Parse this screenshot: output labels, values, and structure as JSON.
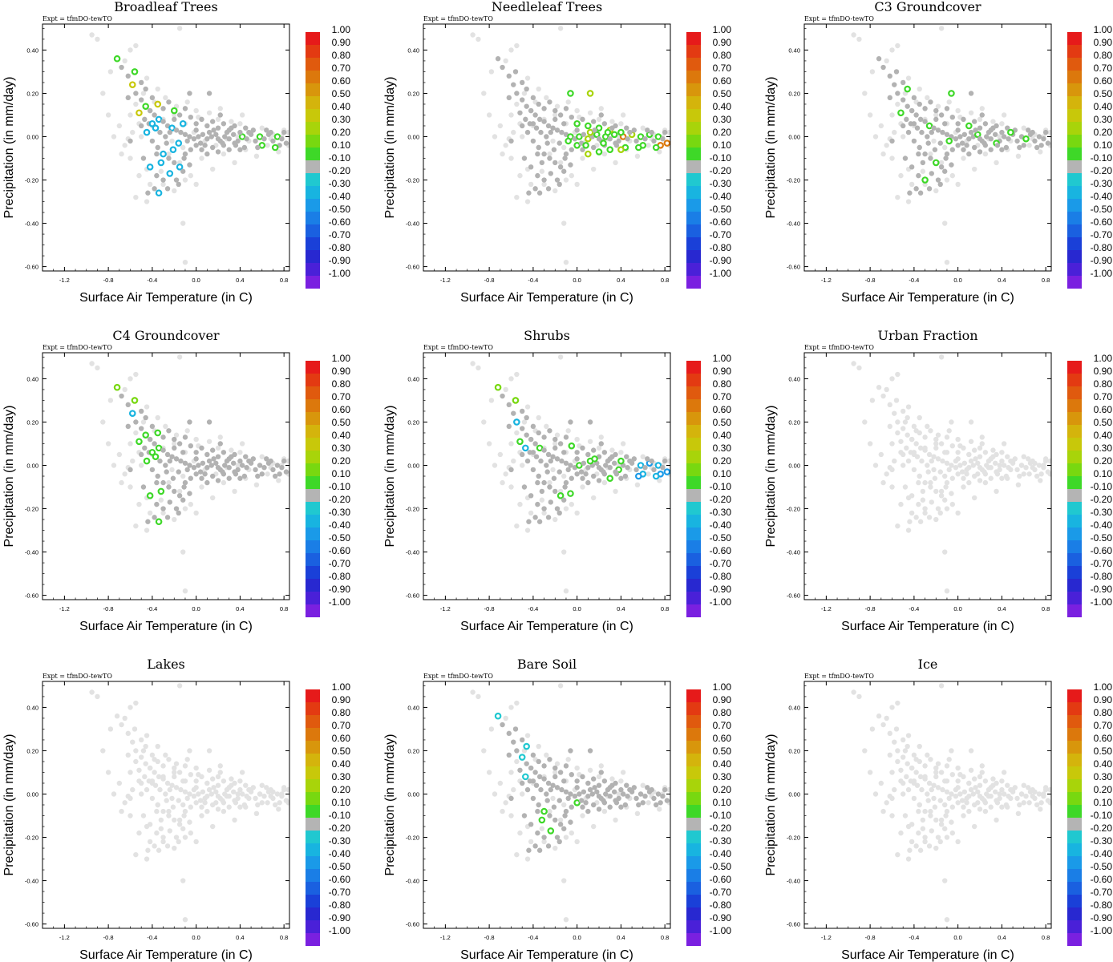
{
  "figure": {
    "experiment": "Expt = tfmDO-tewTO",
    "xlabel": "Surface Air Temperature (in C)",
    "ylabel": "Precipitation (in mm/day)"
  },
  "chart_data": [
    {
      "type": "scatter",
      "panel": "Broadleaf Trees",
      "title": "Broadleaf Trees",
      "highlight": "broadleaf"
    },
    {
      "type": "scatter",
      "panel": "Needleleaf Trees",
      "title": "Needleleaf Trees",
      "highlight": "needleleaf"
    },
    {
      "type": "scatter",
      "panel": "C3 Groundcover",
      "title": "C3 Groundcover",
      "highlight": "c3"
    },
    {
      "type": "scatter",
      "panel": "C4 Groundcover",
      "title": "C4 Groundcover",
      "highlight": "c4"
    },
    {
      "type": "scatter",
      "panel": "Shrubs",
      "title": "Shrubs",
      "highlight": "shrubs"
    },
    {
      "type": "scatter",
      "panel": "Urban Fraction",
      "title": "Urban Fraction",
      "highlight": "none"
    },
    {
      "type": "scatter",
      "panel": "Lakes",
      "title": "Lakes",
      "highlight": "none"
    },
    {
      "type": "scatter",
      "panel": "Bare Soil",
      "title": "Bare Soil",
      "highlight": "baresoil"
    },
    {
      "type": "scatter",
      "panel": "Ice",
      "title": "Ice",
      "highlight": "none"
    }
  ],
  "axes": {
    "xlim": [
      -1.4,
      0.85
    ],
    "ylim": [
      -0.62,
      0.52
    ],
    "xticks": [
      -1.2,
      -0.8,
      -0.4,
      0.0,
      0.4,
      0.8
    ],
    "xtick_labels": [
      "-1.2",
      "-0.8",
      "-0.4",
      "0.0",
      "0.4",
      "0.8"
    ],
    "yticks": [
      0.4,
      0.2,
      0.0,
      -0.2,
      -0.4,
      -0.6
    ],
    "ytick_labels": [
      "0.40",
      "0.20",
      "0.00",
      "-0.20",
      "-0.40",
      "-0.60"
    ]
  },
  "colorbar": {
    "labels": [
      "1.00",
      "0.90",
      "0.80",
      "0.70",
      "0.60",
      "0.50",
      "0.40",
      "0.30",
      "0.20",
      "0.10",
      "-0.10",
      "-0.20",
      "-0.30",
      "-0.40",
      "-0.50",
      "-0.60",
      "-0.70",
      "-0.80",
      "-0.90",
      "-1.00"
    ],
    "colors": [
      "#e61a1a",
      "#e33a12",
      "#e05a0e",
      "#dc780c",
      "#d8960c",
      "#d4b40c",
      "#c8c80a",
      "#a8d40a",
      "#78d810",
      "#3ed828",
      "#b4b4b4",
      "#20c8d0",
      "#18b4e0",
      "#1a9ae8",
      "#1a7ee6",
      "#1a60e0",
      "#1a40d8",
      "#2828d0",
      "#4a20d8",
      "#7a20e0"
    ]
  },
  "points": {
    "background": [
      [
        -0.95,
        0.47
      ],
      [
        -0.9,
        0.45
      ],
      [
        -0.45,
        0.27
      ],
      [
        -0.35,
        0.22
      ],
      [
        -0.42,
        0.12
      ],
      [
        -0.52,
        0.06
      ],
      [
        -0.58,
        0.02
      ],
      [
        -0.62,
        -0.01
      ],
      [
        -0.65,
        -0.04
      ],
      [
        -0.5,
        0.0
      ],
      [
        -0.4,
        0.05
      ],
      [
        -0.3,
        0.08
      ],
      [
        -0.2,
        0.1
      ],
      [
        -0.1,
        0.06
      ],
      [
        0.0,
        0.12
      ],
      [
        0.1,
        0.05
      ],
      [
        0.2,
        0.08
      ],
      [
        0.3,
        0.03
      ],
      [
        0.4,
        0.06
      ],
      [
        0.5,
        0.02
      ],
      [
        0.6,
        0.04
      ],
      [
        0.7,
        0.01
      ],
      [
        0.8,
        0.03
      ],
      [
        -0.35,
        -0.05
      ],
      [
        -0.25,
        -0.08
      ],
      [
        -0.15,
        -0.12
      ],
      [
        -0.05,
        -0.18
      ],
      [
        0.05,
        -0.1
      ],
      [
        0.15,
        -0.15
      ],
      [
        0.25,
        -0.08
      ],
      [
        0.35,
        -0.12
      ],
      [
        0.45,
        -0.06
      ],
      [
        0.55,
        -0.09
      ],
      [
        0.65,
        -0.04
      ],
      [
        0.75,
        -0.07
      ],
      [
        -0.45,
        -0.15
      ],
      [
        -0.3,
        -0.22
      ],
      [
        -0.2,
        -0.25
      ],
      [
        -0.1,
        -0.2
      ],
      [
        0.0,
        -0.22
      ],
      [
        -0.55,
        -0.28
      ],
      [
        -0.45,
        -0.3
      ],
      [
        -0.12,
        -0.4
      ],
      [
        -0.1,
        -0.58
      ],
      [
        -0.55,
        0.15
      ],
      [
        -0.48,
        0.2
      ],
      [
        -0.38,
        0.16
      ],
      [
        -0.28,
        0.18
      ],
      [
        -0.18,
        0.14
      ],
      [
        -0.08,
        0.16
      ],
      [
        0.02,
        0.09
      ],
      [
        0.12,
        0.11
      ],
      [
        0.22,
        0.13
      ],
      [
        0.32,
        0.07
      ],
      [
        0.42,
        0.1
      ],
      [
        -0.6,
        0.1
      ],
      [
        -0.7,
        0.05
      ],
      [
        -0.75,
        0.0
      ],
      [
        -0.68,
        -0.08
      ],
      [
        -0.6,
        -0.1
      ],
      [
        -0.52,
        -0.18
      ],
      [
        -0.42,
        -0.22
      ],
      [
        -0.32,
        -0.16
      ],
      [
        -0.22,
        -0.02
      ],
      [
        -0.12,
        -0.05
      ],
      [
        -0.02,
        0.02
      ],
      [
        0.08,
        -0.02
      ],
      [
        0.18,
        -0.04
      ],
      [
        0.28,
        -0.01
      ],
      [
        0.38,
        0.0
      ],
      [
        0.48,
        -0.02
      ],
      [
        0.58,
        0.0
      ],
      [
        0.68,
        -0.01
      ],
      [
        0.78,
        0.0
      ],
      [
        0.84,
        0.02
      ],
      [
        0.84,
        -0.04
      ],
      [
        -0.8,
        0.1
      ],
      [
        -0.85,
        0.2
      ],
      [
        -0.78,
        0.3
      ],
      [
        -0.65,
        0.35
      ],
      [
        -0.6,
        0.4
      ],
      [
        -0.55,
        0.42
      ],
      [
        -0.15,
        0.5
      ]
    ],
    "cloud": [
      [
        -0.72,
        0.36
      ],
      [
        -0.68,
        0.32
      ],
      [
        -0.62,
        0.28
      ],
      [
        -0.58,
        0.24
      ],
      [
        -0.55,
        0.2
      ],
      [
        -0.5,
        0.17
      ],
      [
        -0.46,
        0.14
      ],
      [
        -0.42,
        0.12
      ],
      [
        -0.38,
        0.1
      ],
      [
        -0.34,
        0.08
      ],
      [
        -0.3,
        0.07
      ],
      [
        -0.26,
        0.05
      ],
      [
        -0.22,
        0.04
      ],
      [
        -0.18,
        0.03
      ],
      [
        -0.14,
        0.02
      ],
      [
        -0.1,
        0.01
      ],
      [
        -0.06,
        0.0
      ],
      [
        -0.02,
        -0.01
      ],
      [
        0.02,
        0.0
      ],
      [
        0.06,
        0.01
      ],
      [
        0.1,
        -0.01
      ],
      [
        0.14,
        0.0
      ],
      [
        0.18,
        0.01
      ],
      [
        0.22,
        -0.02
      ],
      [
        0.26,
        0.0
      ],
      [
        0.3,
        -0.01
      ],
      [
        0.34,
        0.01
      ],
      [
        0.38,
        -0.02
      ],
      [
        0.42,
        0.0
      ],
      [
        0.46,
        -0.01
      ],
      [
        0.5,
        0.01
      ],
      [
        0.54,
        -0.02
      ],
      [
        0.58,
        0.0
      ],
      [
        0.62,
        -0.01
      ],
      [
        0.66,
        0.01
      ],
      [
        0.7,
        -0.02
      ],
      [
        0.74,
        0.0
      ],
      [
        0.78,
        -0.01
      ],
      [
        -0.5,
        0.05
      ],
      [
        -0.45,
        0.02
      ],
      [
        -0.4,
        -0.02
      ],
      [
        -0.35,
        -0.05
      ],
      [
        -0.3,
        -0.08
      ],
      [
        -0.25,
        -0.1
      ],
      [
        -0.2,
        -0.12
      ],
      [
        -0.15,
        -0.14
      ],
      [
        -0.1,
        -0.08
      ],
      [
        -0.05,
        -0.06
      ],
      [
        0.0,
        -0.04
      ],
      [
        0.05,
        -0.06
      ],
      [
        0.1,
        -0.08
      ],
      [
        0.15,
        -0.05
      ],
      [
        0.2,
        -0.07
      ],
      [
        0.25,
        -0.04
      ],
      [
        0.3,
        -0.06
      ],
      [
        0.35,
        -0.03
      ],
      [
        -0.4,
        0.18
      ],
      [
        -0.35,
        0.15
      ],
      [
        -0.3,
        0.13
      ],
      [
        -0.25,
        0.16
      ],
      [
        -0.2,
        0.12
      ],
      [
        -0.15,
        0.1
      ],
      [
        -0.1,
        0.13
      ],
      [
        -0.05,
        0.09
      ],
      [
        0.0,
        0.06
      ],
      [
        0.05,
        0.08
      ],
      [
        0.1,
        0.05
      ],
      [
        0.15,
        0.07
      ],
      [
        0.2,
        0.04
      ],
      [
        0.25,
        0.06
      ],
      [
        0.3,
        0.03
      ],
      [
        0.35,
        0.05
      ],
      [
        0.4,
        0.02
      ],
      [
        0.45,
        0.04
      ],
      [
        -0.48,
        -0.1
      ],
      [
        -0.42,
        -0.14
      ],
      [
        -0.36,
        -0.18
      ],
      [
        -0.3,
        -0.2
      ],
      [
        -0.24,
        -0.17
      ],
      [
        -0.18,
        -0.2
      ],
      [
        -0.12,
        -0.16
      ],
      [
        -0.06,
        -0.13
      ],
      [
        -0.44,
        -0.26
      ],
      [
        -0.38,
        -0.24
      ],
      [
        -0.32,
        -0.12
      ],
      [
        -0.28,
        0.0
      ],
      [
        -0.24,
        0.02
      ],
      [
        -0.16,
        -0.03
      ],
      [
        -0.08,
        -0.02
      ],
      [
        0.04,
        -0.03
      ],
      [
        0.12,
        0.02
      ],
      [
        0.2,
        -0.01
      ],
      [
        0.28,
        0.02
      ],
      [
        0.36,
        -0.04
      ],
      [
        0.44,
        -0.05
      ],
      [
        0.52,
        0.03
      ],
      [
        0.6,
        -0.04
      ],
      [
        0.68,
        0.02
      ],
      [
        0.76,
        -0.04
      ],
      [
        -0.52,
        0.11
      ],
      [
        -0.47,
        0.08
      ],
      [
        -0.43,
        0.06
      ],
      [
        -0.37,
        0.04
      ],
      [
        -0.33,
        0.02
      ],
      [
        -0.27,
        -0.03
      ],
      [
        -0.21,
        -0.06
      ],
      [
        -0.11,
        -0.1
      ],
      [
        -0.62,
        0.18
      ],
      [
        -0.56,
        0.3
      ],
      [
        -0.5,
        0.25
      ],
      [
        -0.46,
        0.22
      ],
      [
        -0.4,
        0.06
      ],
      [
        -0.36,
        -0.08
      ],
      [
        -0.2,
        0.08
      ],
      [
        -0.12,
        0.06
      ],
      [
        0.0,
        0.03
      ],
      [
        0.08,
        -0.04
      ],
      [
        0.16,
        0.03
      ],
      [
        0.24,
        -0.03
      ],
      [
        0.32,
        0.04
      ],
      [
        0.4,
        -0.06
      ],
      [
        0.48,
        0.02
      ],
      [
        0.56,
        -0.05
      ],
      [
        0.64,
        0.03
      ],
      [
        0.72,
        -0.05
      ],
      [
        0.8,
        0.02
      ],
      [
        0.82,
        -0.03
      ],
      [
        -0.26,
        -0.24
      ],
      [
        -0.16,
        -0.22
      ],
      [
        -0.34,
        -0.26
      ],
      [
        0.12,
        0.2
      ],
      [
        0.22,
        0.1
      ],
      [
        -0.06,
        0.2
      ],
      [
        -0.6,
        -0.02
      ]
    ]
  }
}
